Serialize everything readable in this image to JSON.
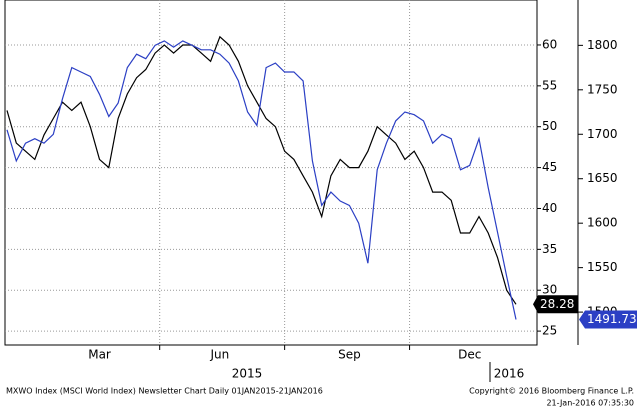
{
  "chart_data": {
    "type": "line",
    "categories": [
      null,
      null,
      null,
      null,
      null,
      null,
      null,
      null,
      null,
      null,
      "Mar",
      null,
      null,
      null,
      null,
      null,
      null,
      null,
      null,
      null,
      null,
      null,
      null,
      "Jun",
      null,
      null,
      null,
      null,
      null,
      null,
      null,
      null,
      null,
      null,
      null,
      null,
      null,
      "Sep",
      null,
      null,
      null,
      null,
      null,
      null,
      null,
      null,
      null,
      null,
      null,
      null,
      "Dec",
      null,
      null,
      null,
      null,
      null
    ],
    "years": [
      "2015",
      "2016"
    ],
    "series": [
      {
        "color": "#000000",
        "axis": "y",
        "values": [
          52,
          48,
          47,
          46,
          49,
          51,
          53,
          52,
          53,
          50,
          46,
          45,
          51,
          54,
          56,
          57,
          59,
          60,
          59,
          60,
          60,
          59,
          58,
          61,
          60,
          58,
          55,
          53,
          51,
          50,
          47,
          46,
          44,
          42,
          39,
          44,
          46,
          45,
          45,
          47,
          50,
          49,
          48,
          46,
          47,
          45,
          42,
          42,
          41,
          37,
          37,
          39,
          37,
          34,
          30,
          28.28
        ]
      },
      {
        "color": "#2b3fc4",
        "axis": "y2",
        "values": [
          1705,
          1670,
          1690,
          1695,
          1690,
          1700,
          1740,
          1775,
          1770,
          1765,
          1745,
          1720,
          1735,
          1775,
          1790,
          1785,
          1800,
          1805,
          1798,
          1805,
          1800,
          1795,
          1795,
          1790,
          1780,
          1760,
          1725,
          1710,
          1775,
          1780,
          1770,
          1770,
          1760,
          1670,
          1620,
          1635,
          1625,
          1620,
          1600,
          1555,
          1660,
          1690,
          1715,
          1725,
          1722,
          1715,
          1690,
          1700,
          1695,
          1660,
          1665,
          1695,
          1640,
          1590,
          1540,
          1491.73
        ]
      }
    ],
    "ylim": [
      23.3,
      65.5
    ],
    "yticks": [
      25,
      30,
      35,
      40,
      45,
      50,
      55,
      60
    ],
    "y2lim": [
      1463,
      1851
    ],
    "y2ticks": [
      1500,
      1550,
      1600,
      1650,
      1700,
      1750,
      1800
    ],
    "grid": true,
    "footer": "MXWO Index (MSCI World Index) Newsletter Chart Daily 01JAN2015-21JAN2016",
    "copyright": "Copyright© 2016 Bloomberg Finance L.P.",
    "timestamp": "21-Jan-2016 07:35:30"
  }
}
